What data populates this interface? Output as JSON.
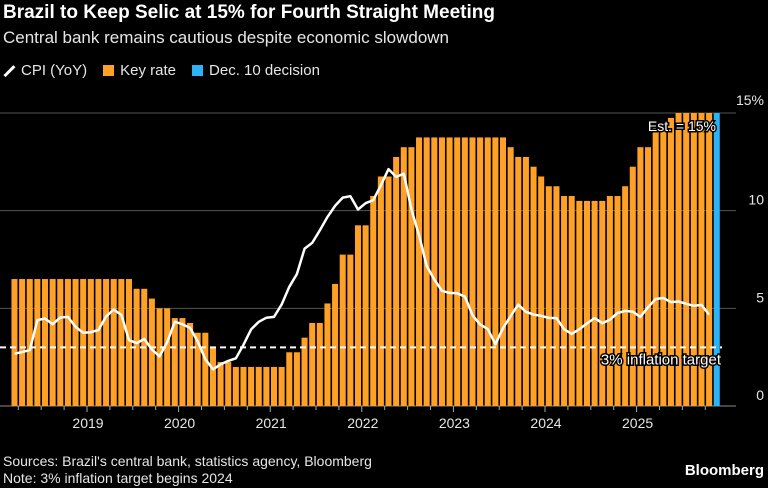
{
  "chart_data": {
    "type": "bar+line",
    "title": "Brazil to Keep Selic at 15% for Fourth Straight Meeting",
    "subtitle": "Central bank remains cautious despite economic slowdown",
    "legend": {
      "placement": "top-left",
      "entries": [
        "CPI (YoY)",
        "Key rate",
        "Dec. 10 decision"
      ]
    },
    "colors": {
      "cpi": "#ffffff",
      "key_rate": "#ffa126",
      "decision": "#2bb3f5",
      "target": "#ffffff"
    },
    "ylim": [
      0,
      15
    ],
    "yticks": [
      "0",
      "5",
      "10",
      "15%"
    ],
    "xticks": [
      "2019",
      "2020",
      "2021",
      "2022",
      "2023",
      "2024",
      "2025"
    ],
    "grid": true,
    "key_rate": {
      "start": "2018-03",
      "values": [
        6.5,
        6.5,
        6.5,
        6.5,
        6.5,
        6.5,
        6.5,
        6.5,
        6.5,
        6.5,
        6.5,
        6.5,
        6.5,
        6.5,
        6.5,
        6.5,
        6.0,
        6.0,
        5.5,
        5.0,
        5.0,
        4.5,
        4.5,
        4.25,
        3.75,
        3.75,
        3.0,
        2.25,
        2.25,
        2.0,
        2.0,
        2.0,
        2.0,
        2.0,
        2.0,
        2.0,
        2.75,
        2.75,
        3.5,
        4.25,
        4.25,
        5.25,
        6.25,
        7.75,
        7.75,
        9.25,
        9.25,
        10.75,
        11.75,
        11.75,
        12.75,
        13.25,
        13.25,
        13.75,
        13.75,
        13.75,
        13.75,
        13.75,
        13.75,
        13.75,
        13.75,
        13.75,
        13.75,
        13.75,
        13.75,
        13.25,
        12.75,
        12.75,
        12.25,
        11.75,
        11.25,
        11.25,
        10.75,
        10.75,
        10.5,
        10.5,
        10.5,
        10.5,
        10.75,
        10.75,
        11.25,
        12.25,
        13.25,
        13.25,
        14.25,
        14.25,
        14.75,
        15,
        15,
        15,
        15,
        15,
        15
      ]
    },
    "decision": {
      "label": "Dec. 10 decision",
      "month": "2025-12",
      "value": 15,
      "annotation": "Est. = 15%"
    },
    "cpi": {
      "start": "2018-03",
      "values": [
        2.68,
        2.76,
        2.86,
        4.39,
        4.48,
        4.19,
        4.53,
        4.56,
        4.05,
        3.75,
        3.78,
        3.89,
        4.58,
        4.94,
        4.66,
        3.37,
        3.22,
        3.43,
        2.89,
        2.54,
        3.27,
        4.31,
        4.19,
        4.0,
        3.3,
        2.4,
        1.88,
        2.13,
        2.31,
        2.44,
        3.14,
        3.92,
        4.31,
        4.52,
        4.56,
        5.2,
        6.1,
        6.76,
        8.06,
        8.35,
        8.99,
        9.68,
        10.25,
        10.67,
        10.74,
        10.06,
        10.38,
        10.54,
        11.3,
        12.13,
        11.73,
        11.89,
        10.07,
        8.73,
        7.17,
        6.47,
        5.9,
        5.79,
        5.77,
        5.6,
        4.65,
        4.18,
        3.94,
        3.16,
        3.99,
        4.61,
        5.19,
        4.82,
        4.68,
        4.62,
        4.51,
        4.5,
        3.93,
        3.69,
        3.93,
        4.23,
        4.5,
        4.24,
        4.42,
        4.76,
        4.87,
        4.83,
        4.56,
        5.06,
        5.48,
        5.53,
        5.32,
        5.35,
        5.23,
        5.13,
        5.17,
        4.68
      ]
    },
    "target": {
      "value": 3,
      "label": "3% inflation target"
    }
  },
  "footer": {
    "sources": "Sources: Brazil's central bank, statistics agency, Bloomberg",
    "note": "Note: 3% inflation target begins 2024",
    "brand": "Bloomberg"
  }
}
